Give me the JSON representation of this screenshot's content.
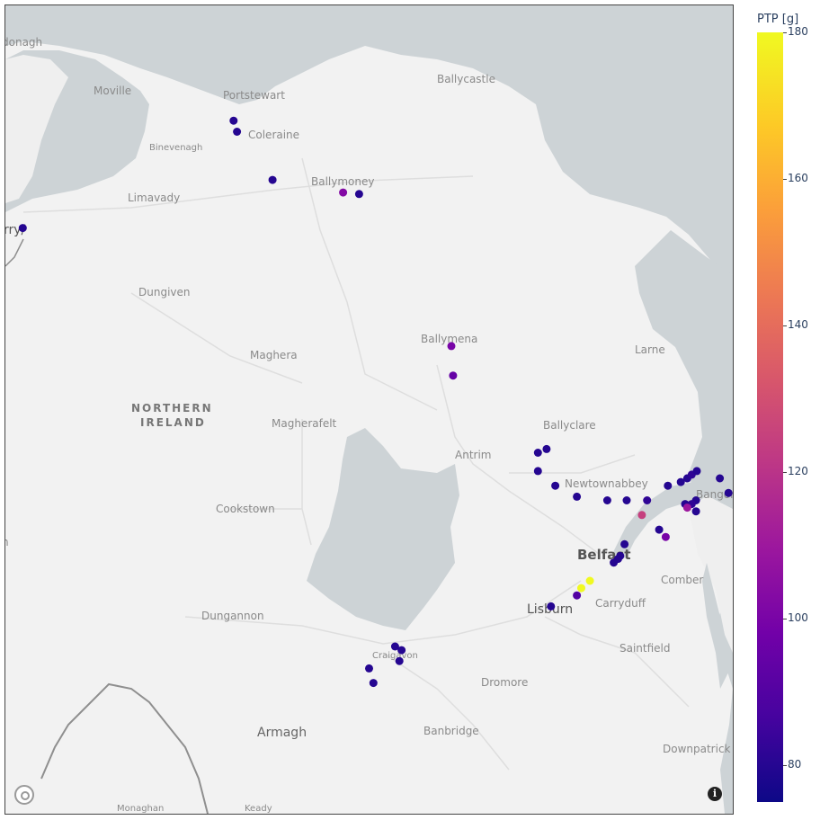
{
  "colorbar": {
    "title": "PTP [g]",
    "ticks": [
      80,
      100,
      120,
      140,
      160,
      180
    ],
    "min": 75,
    "max": 180,
    "colors": [
      "#0d0887",
      "#46039f",
      "#7201a8",
      "#9c179e",
      "#bd3786",
      "#d8576b",
      "#ed7953",
      "#fb9f3a",
      "#fdca26",
      "#f0f921"
    ]
  },
  "map_labels": {
    "donagh": "donagh",
    "moville": "Moville",
    "portstewart": "Portstewart",
    "ballycastle": "Ballycastle",
    "binevenagh": "Binevenagh",
    "coleraine": "Coleraine",
    "limavady": "Limavady",
    "ballymoney": "Ballymoney",
    "derry": "rry/",
    "dungiven": "Dungiven",
    "ballymena": "Ballymena",
    "larne": "Larne",
    "maghera": "Maghera",
    "northern_ireland_1": "NORTHERN",
    "northern_ireland_2": "IRELAND",
    "magherafelt": "Magherafelt",
    "ballyclare": "Ballyclare",
    "antrim": "Antrim",
    "newtownabbey": "Newtownabbey",
    "bangor": "Bangor",
    "cookstown": "Cookstown",
    "belfast": "Belfast",
    "comber": "Comber",
    "carryduff": "Carryduff",
    "dungannon": "Dungannon",
    "lisburn": "Lisburn",
    "saintfield": "Saintfield",
    "craigavon": "Craigavon",
    "dromore": "Dromore",
    "armagh": "Armagh",
    "banbridge": "Banbridge",
    "downpatrick": "Downpatrick",
    "monaghan": "Monaghan",
    "keady": "Keady",
    "edge_h": "h"
  },
  "points": [
    {
      "lat": 55.175,
      "lon": -6.803,
      "value": 80
    },
    {
      "lat": 55.16,
      "lon": -6.795,
      "value": 80
    },
    {
      "lat": 55.095,
      "lon": -6.713,
      "value": 80
    },
    {
      "lat": 55.078,
      "lon": -6.55,
      "value": 103
    },
    {
      "lat": 55.076,
      "lon": -6.513,
      "value": 80
    },
    {
      "lat": 55.03,
      "lon": -7.29,
      "value": 80
    },
    {
      "lat": 54.87,
      "lon": -6.3,
      "value": 100
    },
    {
      "lat": 54.83,
      "lon": -6.296,
      "value": 95
    },
    {
      "lat": 54.73,
      "lon": -6.08,
      "value": 80
    },
    {
      "lat": 54.725,
      "lon": -6.1,
      "value": 80
    },
    {
      "lat": 54.7,
      "lon": -6.1,
      "value": 80
    },
    {
      "lat": 54.68,
      "lon": -6.06,
      "value": 80
    },
    {
      "lat": 54.665,
      "lon": -6.01,
      "value": 80
    },
    {
      "lat": 54.66,
      "lon": -5.94,
      "value": 80
    },
    {
      "lat": 54.66,
      "lon": -5.895,
      "value": 80
    },
    {
      "lat": 54.66,
      "lon": -5.848,
      "value": 82
    },
    {
      "lat": 54.68,
      "lon": -5.8,
      "value": 80
    },
    {
      "lat": 54.685,
      "lon": -5.77,
      "value": 80
    },
    {
      "lat": 54.69,
      "lon": -5.755,
      "value": 80
    },
    {
      "lat": 54.695,
      "lon": -5.745,
      "value": 82
    },
    {
      "lat": 54.7,
      "lon": -5.733,
      "value": 80
    },
    {
      "lat": 54.69,
      "lon": -5.68,
      "value": 80
    },
    {
      "lat": 54.67,
      "lon": -5.66,
      "value": 80
    },
    {
      "lat": 54.66,
      "lon": -5.735,
      "value": 80
    },
    {
      "lat": 54.655,
      "lon": -5.745,
      "value": 82
    },
    {
      "lat": 54.655,
      "lon": -5.76,
      "value": 80
    },
    {
      "lat": 54.65,
      "lon": -5.755,
      "value": 110
    },
    {
      "lat": 54.645,
      "lon": -5.735,
      "value": 80
    },
    {
      "lat": 54.62,
      "lon": -5.82,
      "value": 80
    },
    {
      "lat": 54.61,
      "lon": -5.805,
      "value": 100
    },
    {
      "lat": 54.64,
      "lon": -5.86,
      "value": 125
    },
    {
      "lat": 54.6,
      "lon": -5.9,
      "value": 80
    },
    {
      "lat": 54.584,
      "lon": -5.91,
      "value": 80
    },
    {
      "lat": 54.58,
      "lon": -5.915,
      "value": 80
    },
    {
      "lat": 54.575,
      "lon": -5.925,
      "value": 80
    },
    {
      "lat": 54.55,
      "lon": -5.98,
      "value": 180
    },
    {
      "lat": 54.54,
      "lon": -6.0,
      "value": 180
    },
    {
      "lat": 54.53,
      "lon": -6.01,
      "value": 90
    },
    {
      "lat": 54.515,
      "lon": -6.07,
      "value": 80
    },
    {
      "lat": 54.46,
      "lon": -6.43,
      "value": 80
    },
    {
      "lat": 54.455,
      "lon": -6.415,
      "value": 80
    },
    {
      "lat": 54.44,
      "lon": -6.42,
      "value": 80
    },
    {
      "lat": 54.43,
      "lon": -6.49,
      "value": 80
    },
    {
      "lat": 54.41,
      "lon": -6.48,
      "value": 80
    }
  ]
}
